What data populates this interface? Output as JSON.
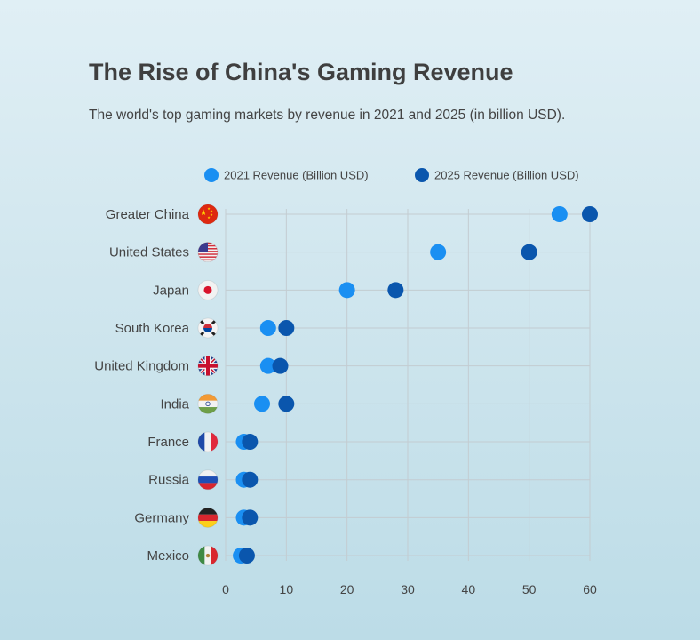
{
  "header": {
    "title": "The Rise of China's Gaming Revenue",
    "subtitle": "The world's top gaming markets by revenue in 2021 and 2025 (in billion USD)."
  },
  "colors": {
    "series_2021": "#1a8ff2",
    "series_2025": "#0a56ad",
    "grid": "#c3ccd1"
  },
  "chart_data": {
    "type": "scatter",
    "title": "The Rise of China's Gaming Revenue",
    "subtitle": "The world's top gaming markets by revenue in 2021 and 2025 (in billion USD).",
    "xlabel": "",
    "ylabel": "",
    "xlim": [
      0,
      60
    ],
    "xticks": [
      "0",
      "10",
      "20",
      "30",
      "40",
      "50",
      "60"
    ],
    "grid": true,
    "legend_position": "top",
    "categories": [
      "Greater China",
      "United States",
      "Japan",
      "South Korea",
      "United Kingdom",
      "India",
      "France",
      "Russia",
      "Germany",
      "Mexico"
    ],
    "flags": [
      "china-flag-icon",
      "usa-flag-icon",
      "japan-flag-icon",
      "south-korea-flag-icon",
      "uk-flag-icon",
      "india-flag-icon",
      "france-flag-icon",
      "russia-flag-icon",
      "germany-flag-icon",
      "mexico-flag-icon"
    ],
    "series": [
      {
        "name": "2021 Revenue (Billion USD)",
        "values": [
          55,
          35,
          20,
          7,
          7,
          6,
          3,
          3,
          3,
          2.5
        ]
      },
      {
        "name": "2025 Revenue (Billion USD)",
        "values": [
          60,
          50,
          28,
          10,
          9,
          10,
          4,
          4,
          4,
          3.5
        ]
      }
    ]
  }
}
